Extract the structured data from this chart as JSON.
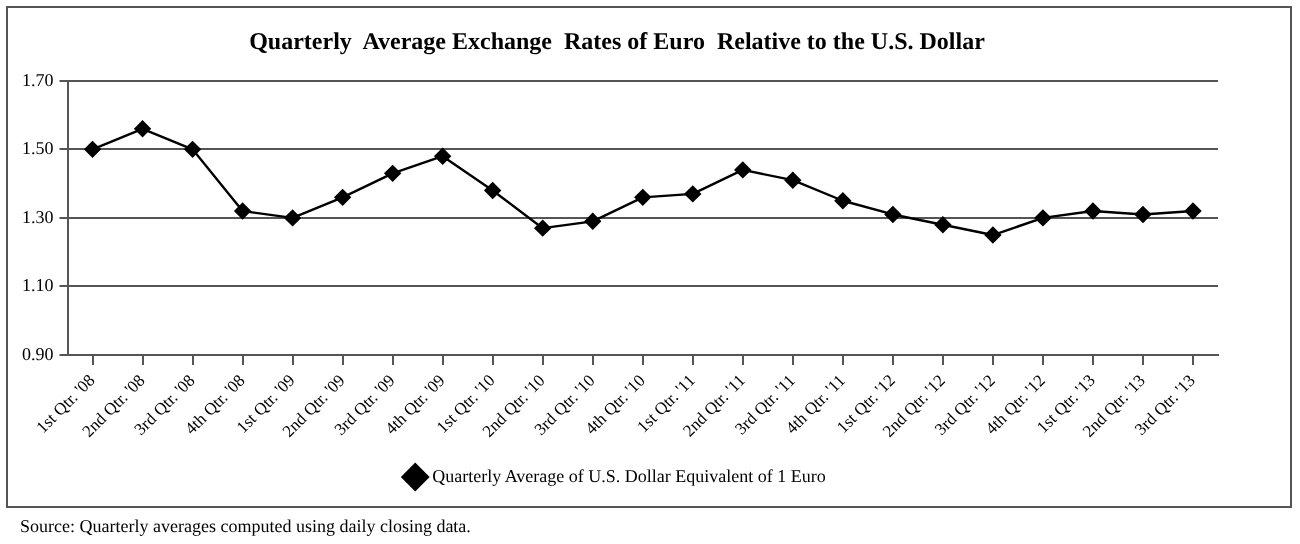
{
  "chart_data": {
    "type": "line",
    "title": "Quarterly  Average Exchange  Rates of Euro  Relative to the U.S. Dollar",
    "categories": [
      "1st Qtr. '08",
      "2nd Qtr. '08",
      "3rd Qtr. '08",
      "4th Qtr. '08",
      "1st Qtr. '09",
      "2nd Qtr. '09",
      "3rd Qtr. '09",
      "4th Qtr. '09",
      "1st Qtr. '10",
      "2nd Qtr. '10",
      "3rd Qtr. '10",
      "4th Qtr. '10",
      "1st Qtr. '11",
      "2nd Qtr. '11",
      "3rd Qtr. '11",
      "4th Qtr. '11",
      "1st Qtr. '12",
      "2nd Qtr. '12",
      "3rd Qtr. '12",
      "4th Qtr. '12",
      "1st Qtr. '13",
      "2nd Qtr. '13",
      "3rd Qtr. '13"
    ],
    "series": [
      {
        "name": "Quarterly Average of U.S. Dollar Equivalent of 1 Euro",
        "color": "#000000",
        "values": [
          1.5,
          1.56,
          1.5,
          1.32,
          1.3,
          1.36,
          1.43,
          1.48,
          1.38,
          1.27,
          1.29,
          1.36,
          1.37,
          1.44,
          1.41,
          1.35,
          1.31,
          1.28,
          1.25,
          1.3,
          1.32,
          1.31,
          1.32
        ]
      }
    ],
    "ylim": [
      0.9,
      1.7
    ],
    "yticks": [
      {
        "value": 0.9,
        "label": "0.90"
      },
      {
        "value": 1.1,
        "label": "1.10"
      },
      {
        "value": 1.3,
        "label": "1.30"
      },
      {
        "value": 1.5,
        "label": "1.50"
      },
      {
        "value": 1.7,
        "label": "1.70"
      }
    ],
    "grid": "y",
    "legend": "bottom",
    "marker": "diamond",
    "line_style": "solid",
    "annotations": [
      "Source:  Quarterly averages computed using daily closing data."
    ]
  }
}
